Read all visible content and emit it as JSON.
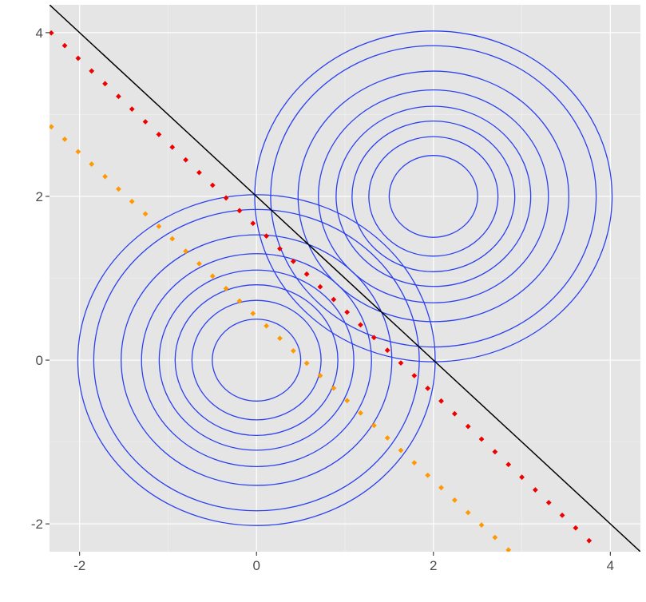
{
  "chart_data": {
    "type": "scatter",
    "title": "",
    "xlabel": "",
    "ylabel": "",
    "xlim": [
      -2.34,
      4.34
    ],
    "ylim": [
      -2.34,
      4.34
    ],
    "grid": true,
    "legend": "none",
    "x_ticks": [
      -2,
      0,
      2,
      4
    ],
    "x_tick_labels": [
      "-2",
      "0",
      "2",
      "4"
    ],
    "y_ticks": [
      -2,
      0,
      2,
      4
    ],
    "y_tick_labels": [
      "-2",
      "0",
      "2",
      "4"
    ],
    "colors": {
      "panel_background": "#e5e5e5",
      "grid_major": "#ffffff",
      "contour": "#2b40f0",
      "decision_line": "#000000",
      "red_points": "#ee0000",
      "orange_points": "#ff9900"
    },
    "contours": [
      {
        "center": [
          0,
          0
        ],
        "radii": [
          0.5,
          0.73,
          0.92,
          1.1,
          1.3,
          1.53,
          1.84,
          2.02
        ]
      },
      {
        "center": [
          2,
          2
        ],
        "radii": [
          0.5,
          0.73,
          0.92,
          1.1,
          1.3,
          1.53,
          1.84,
          2.02
        ]
      }
    ],
    "lines": [
      {
        "name": "solid",
        "style": "solid",
        "color": "#000000",
        "slope": -1,
        "intercept": 2
      },
      {
        "name": "red-dotted",
        "style": "dotted",
        "color": "#ee0000",
        "slope": -1.02,
        "intercept": 1.63
      },
      {
        "name": "orange-dotted",
        "style": "dotted",
        "color": "#ff9900",
        "slope": -1.0,
        "intercept": 0.53
      }
    ],
    "dot_x_range": [
      -2.34,
      4.34
    ],
    "dot_spacing_x": 0.152
  }
}
